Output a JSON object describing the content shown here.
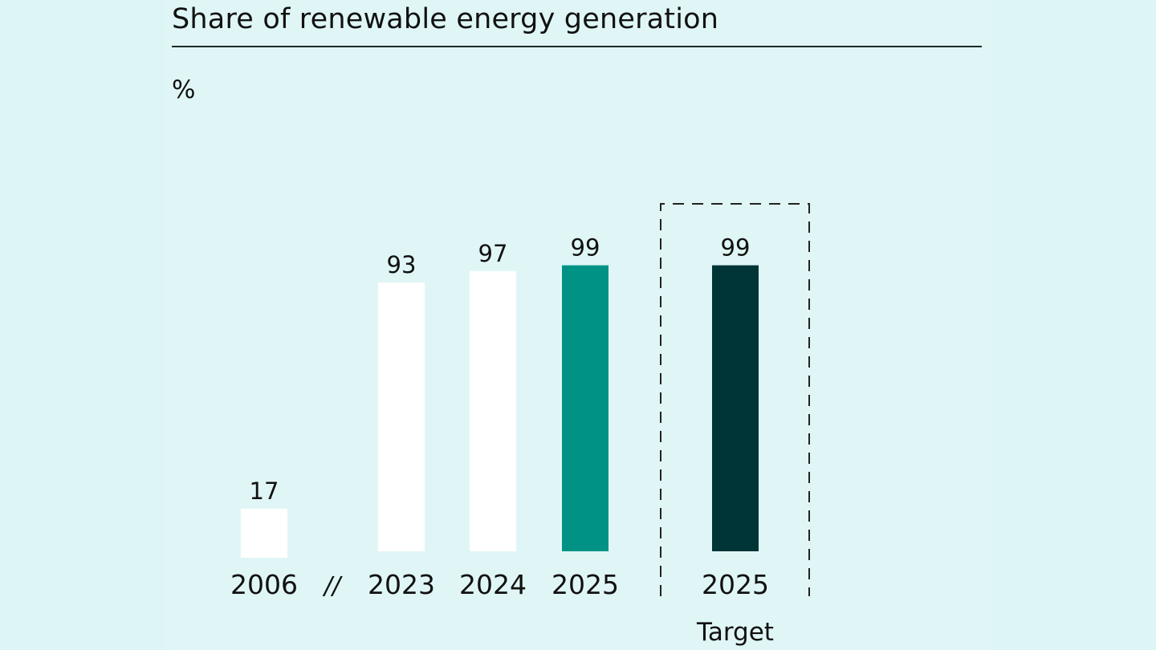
{
  "colors": {
    "background": "#dff5f5",
    "bar_default": "#ffffff",
    "bar_2025": "#009385",
    "bar_target": "#003537",
    "text": "#111111"
  },
  "chart_data": {
    "type": "bar",
    "title": "Share of renewable energy generation",
    "ylabel": "%",
    "ylim": [
      0,
      100
    ],
    "grid": false,
    "axis_break_marker": "//",
    "categories": [
      "2006",
      "2023",
      "2024",
      "2025",
      "2025"
    ],
    "values": [
      17,
      93,
      97,
      99,
      99
    ],
    "value_labels": [
      "17",
      "93",
      "97",
      "99",
      "99"
    ],
    "target_group": {
      "category_index": 4,
      "label": "Target",
      "boxed": true
    }
  }
}
